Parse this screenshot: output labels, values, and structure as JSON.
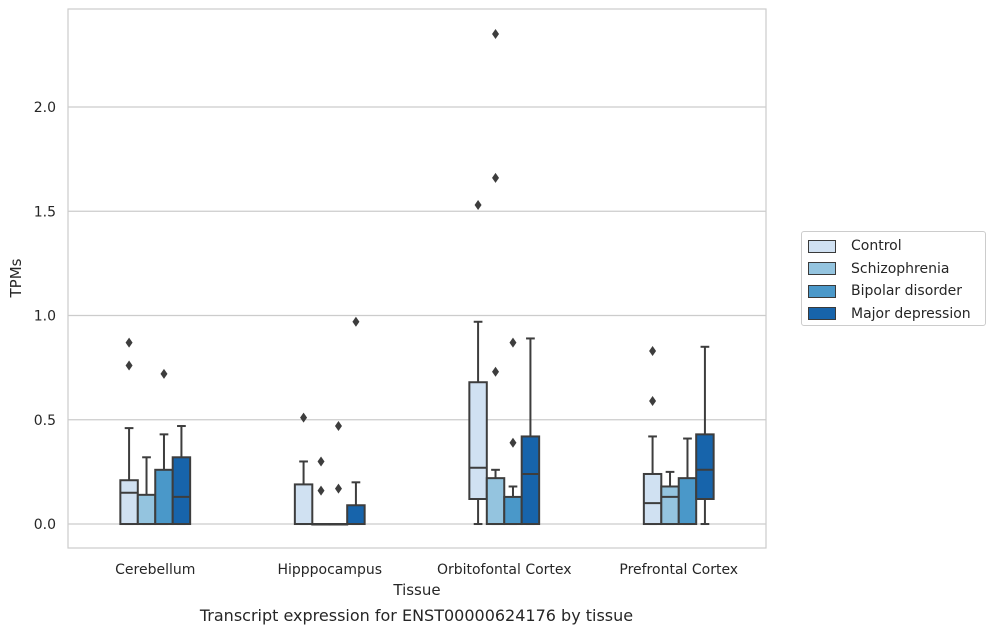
{
  "chart_data": {
    "type": "box",
    "xlabel": "Tissue",
    "ylabel": "TPMs",
    "caption": "Transcript expression for ENST00000624176 by tissue",
    "ylim": [
      -0.115,
      2.47
    ],
    "yticks": [
      0.0,
      0.5,
      1.0,
      1.5,
      2.0
    ],
    "ytick_labels": [
      "0.0",
      "0.5",
      "1.0",
      "1.5",
      "2.0"
    ],
    "grid": "horizontal",
    "legend_position": "right",
    "categories": [
      "Cerebellum",
      "Hipppocampus",
      "Orbitofontal Cortex",
      "Prefrontal Cortex"
    ],
    "series": [
      {
        "name": "Control",
        "color": "#d0e1f2",
        "boxes": [
          {
            "q1": 0.0,
            "median": 0.15,
            "q3": 0.21,
            "whisker_low": 0.0,
            "whisker_high": 0.46,
            "outliers": [
              0.76,
              0.87
            ]
          },
          {
            "q1": 0.0,
            "median": 0.0,
            "q3": 0.19,
            "whisker_low": 0.0,
            "whisker_high": 0.3,
            "outliers": [
              0.51
            ]
          },
          {
            "q1": 0.12,
            "median": 0.27,
            "q3": 0.68,
            "whisker_low": 0.0,
            "whisker_high": 0.97,
            "outliers": [
              1.53
            ]
          },
          {
            "q1": 0.0,
            "median": 0.1,
            "q3": 0.24,
            "whisker_low": 0.0,
            "whisker_high": 0.42,
            "outliers": [
              0.59,
              0.83
            ]
          }
        ]
      },
      {
        "name": "Schizophrenia",
        "color": "#94c4df",
        "boxes": [
          {
            "q1": 0.0,
            "median": 0.0,
            "q3": 0.14,
            "whisker_low": 0.0,
            "whisker_high": 0.32,
            "outliers": []
          },
          {
            "q1": 0.0,
            "median": 0.0,
            "q3": 0.0,
            "whisker_low": 0.0,
            "whisker_high": 0.0,
            "outliers": [
              0.16,
              0.3
            ]
          },
          {
            "q1": 0.0,
            "median": 0.0,
            "q3": 0.22,
            "whisker_low": 0.0,
            "whisker_high": 0.26,
            "outliers": [
              0.73,
              1.66,
              2.35
            ]
          },
          {
            "q1": 0.0,
            "median": 0.13,
            "q3": 0.18,
            "whisker_low": 0.0,
            "whisker_high": 0.25,
            "outliers": []
          }
        ]
      },
      {
        "name": "Bipolar disorder",
        "color": "#4a98c9",
        "boxes": [
          {
            "q1": 0.0,
            "median": 0.0,
            "q3": 0.26,
            "whisker_low": 0.0,
            "whisker_high": 0.43,
            "outliers": [
              0.72
            ]
          },
          {
            "q1": 0.0,
            "median": 0.0,
            "q3": 0.0,
            "whisker_low": 0.0,
            "whisker_high": 0.0,
            "outliers": [
              0.17,
              0.47
            ]
          },
          {
            "q1": 0.0,
            "median": 0.0,
            "q3": 0.13,
            "whisker_low": 0.0,
            "whisker_high": 0.18,
            "outliers": [
              0.39,
              0.87
            ]
          },
          {
            "q1": 0.0,
            "median": 0.0,
            "q3": 0.22,
            "whisker_low": 0.0,
            "whisker_high": 0.41,
            "outliers": []
          }
        ]
      },
      {
        "name": "Major depression",
        "color": "#1764ab",
        "boxes": [
          {
            "q1": 0.0,
            "median": 0.13,
            "q3": 0.32,
            "whisker_low": 0.0,
            "whisker_high": 0.47,
            "outliers": []
          },
          {
            "q1": 0.0,
            "median": 0.0,
            "q3": 0.09,
            "whisker_low": 0.0,
            "whisker_high": 0.2,
            "outliers": [
              0.97
            ]
          },
          {
            "q1": 0.0,
            "median": 0.24,
            "q3": 0.42,
            "whisker_low": 0.0,
            "whisker_high": 0.89,
            "outliers": []
          },
          {
            "q1": 0.12,
            "median": 0.26,
            "q3": 0.43,
            "whisker_low": 0.0,
            "whisker_high": 0.85,
            "outliers": []
          }
        ]
      }
    ]
  }
}
